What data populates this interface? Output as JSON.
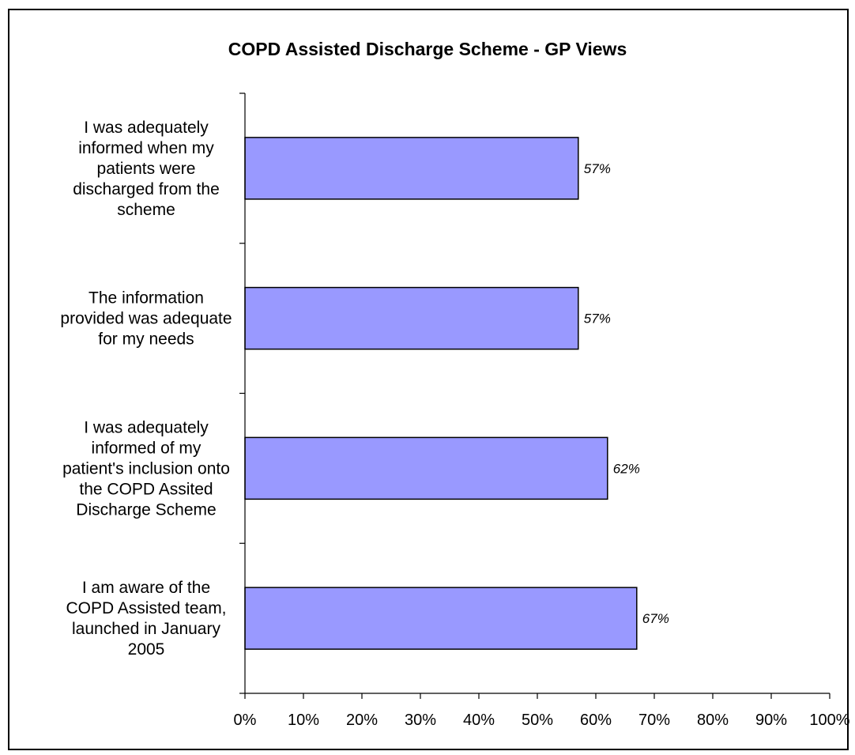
{
  "chart_data": {
    "type": "bar",
    "orientation": "horizontal",
    "title": "COPD Assisted Discharge Scheme - GP Views",
    "categories": [
      "I was adequately informed when my patients were discharged from the scheme",
      "The information provided was adequate for my needs",
      "I was adequately informed of my patient's inclusion onto the COPD Assited Discharge Scheme",
      "I am aware of the COPD Assisted team, launched in January 2005"
    ],
    "category_lines": [
      [
        "I was adequately",
        "informed when my",
        "patients were",
        "discharged from the",
        "scheme"
      ],
      [
        "The information",
        "provided was adequate",
        "for my needs"
      ],
      [
        "I was adequately",
        "informed of my",
        "patient's inclusion onto",
        "the COPD Assited",
        "Discharge Scheme"
      ],
      [
        "I am aware of the",
        "COPD Assisted team,",
        "launched in January",
        "2005"
      ]
    ],
    "values": [
      57,
      57,
      62,
      67
    ],
    "data_labels": [
      "57%",
      "57%",
      "62%",
      "67%"
    ],
    "xlim": [
      0,
      100
    ],
    "x_ticks": [
      0,
      10,
      20,
      30,
      40,
      50,
      60,
      70,
      80,
      90,
      100
    ],
    "x_tick_labels": [
      "0%",
      "10%",
      "20%",
      "30%",
      "40%",
      "50%",
      "60%",
      "70%",
      "80%",
      "90%",
      "100%"
    ],
    "grid": false,
    "legend": "none",
    "colors": {
      "bar_fill": "#9999ff",
      "bar_stroke": "#000000",
      "axis": "#000000",
      "frame": "#000000"
    }
  }
}
